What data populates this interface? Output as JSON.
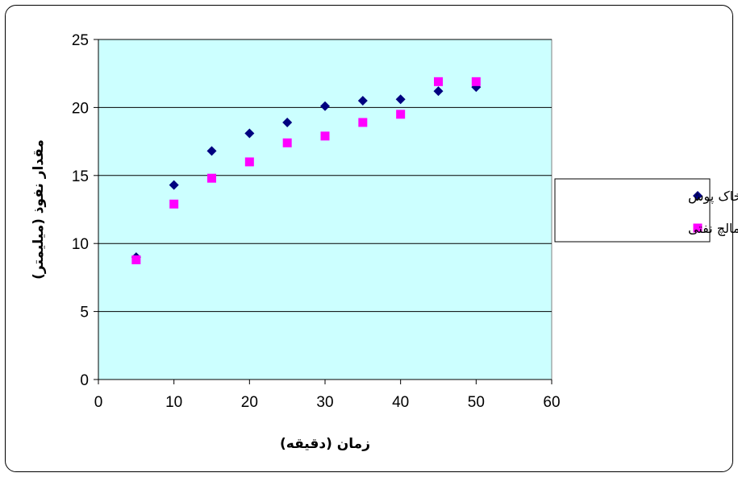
{
  "chart_data": {
    "type": "scatter",
    "xlabel": "زمان (دقیقه)",
    "ylabel": "مقدار نفوذ (میلیمتر)",
    "xlim": [
      0,
      60
    ],
    "ylim": [
      0,
      25
    ],
    "xticks": [
      "0",
      "10",
      "20",
      "30",
      "40",
      "50",
      "60"
    ],
    "yticks": [
      "0",
      "5",
      "10",
      "15",
      "20",
      "25"
    ],
    "grid": "horizontal",
    "legend_position": "right",
    "plot_background": "#ccffff",
    "series": [
      {
        "name": "شن بدون خاک پوش",
        "marker": "diamond",
        "color": "#000080",
        "x": [
          5,
          10,
          15,
          20,
          25,
          30,
          35,
          40,
          45,
          50
        ],
        "y": [
          9.0,
          14.3,
          16.8,
          18.1,
          18.9,
          20.1,
          20.5,
          20.6,
          21.2,
          21.5
        ]
      },
      {
        "name": "مالچ نفتی",
        "marker": "square",
        "color": "#ff00ff",
        "x": [
          5,
          10,
          15,
          20,
          25,
          30,
          35,
          40,
          45,
          50
        ],
        "y": [
          8.8,
          12.9,
          14.8,
          16.0,
          17.4,
          17.9,
          18.9,
          19.5,
          21.9,
          21.9
        ]
      }
    ]
  }
}
